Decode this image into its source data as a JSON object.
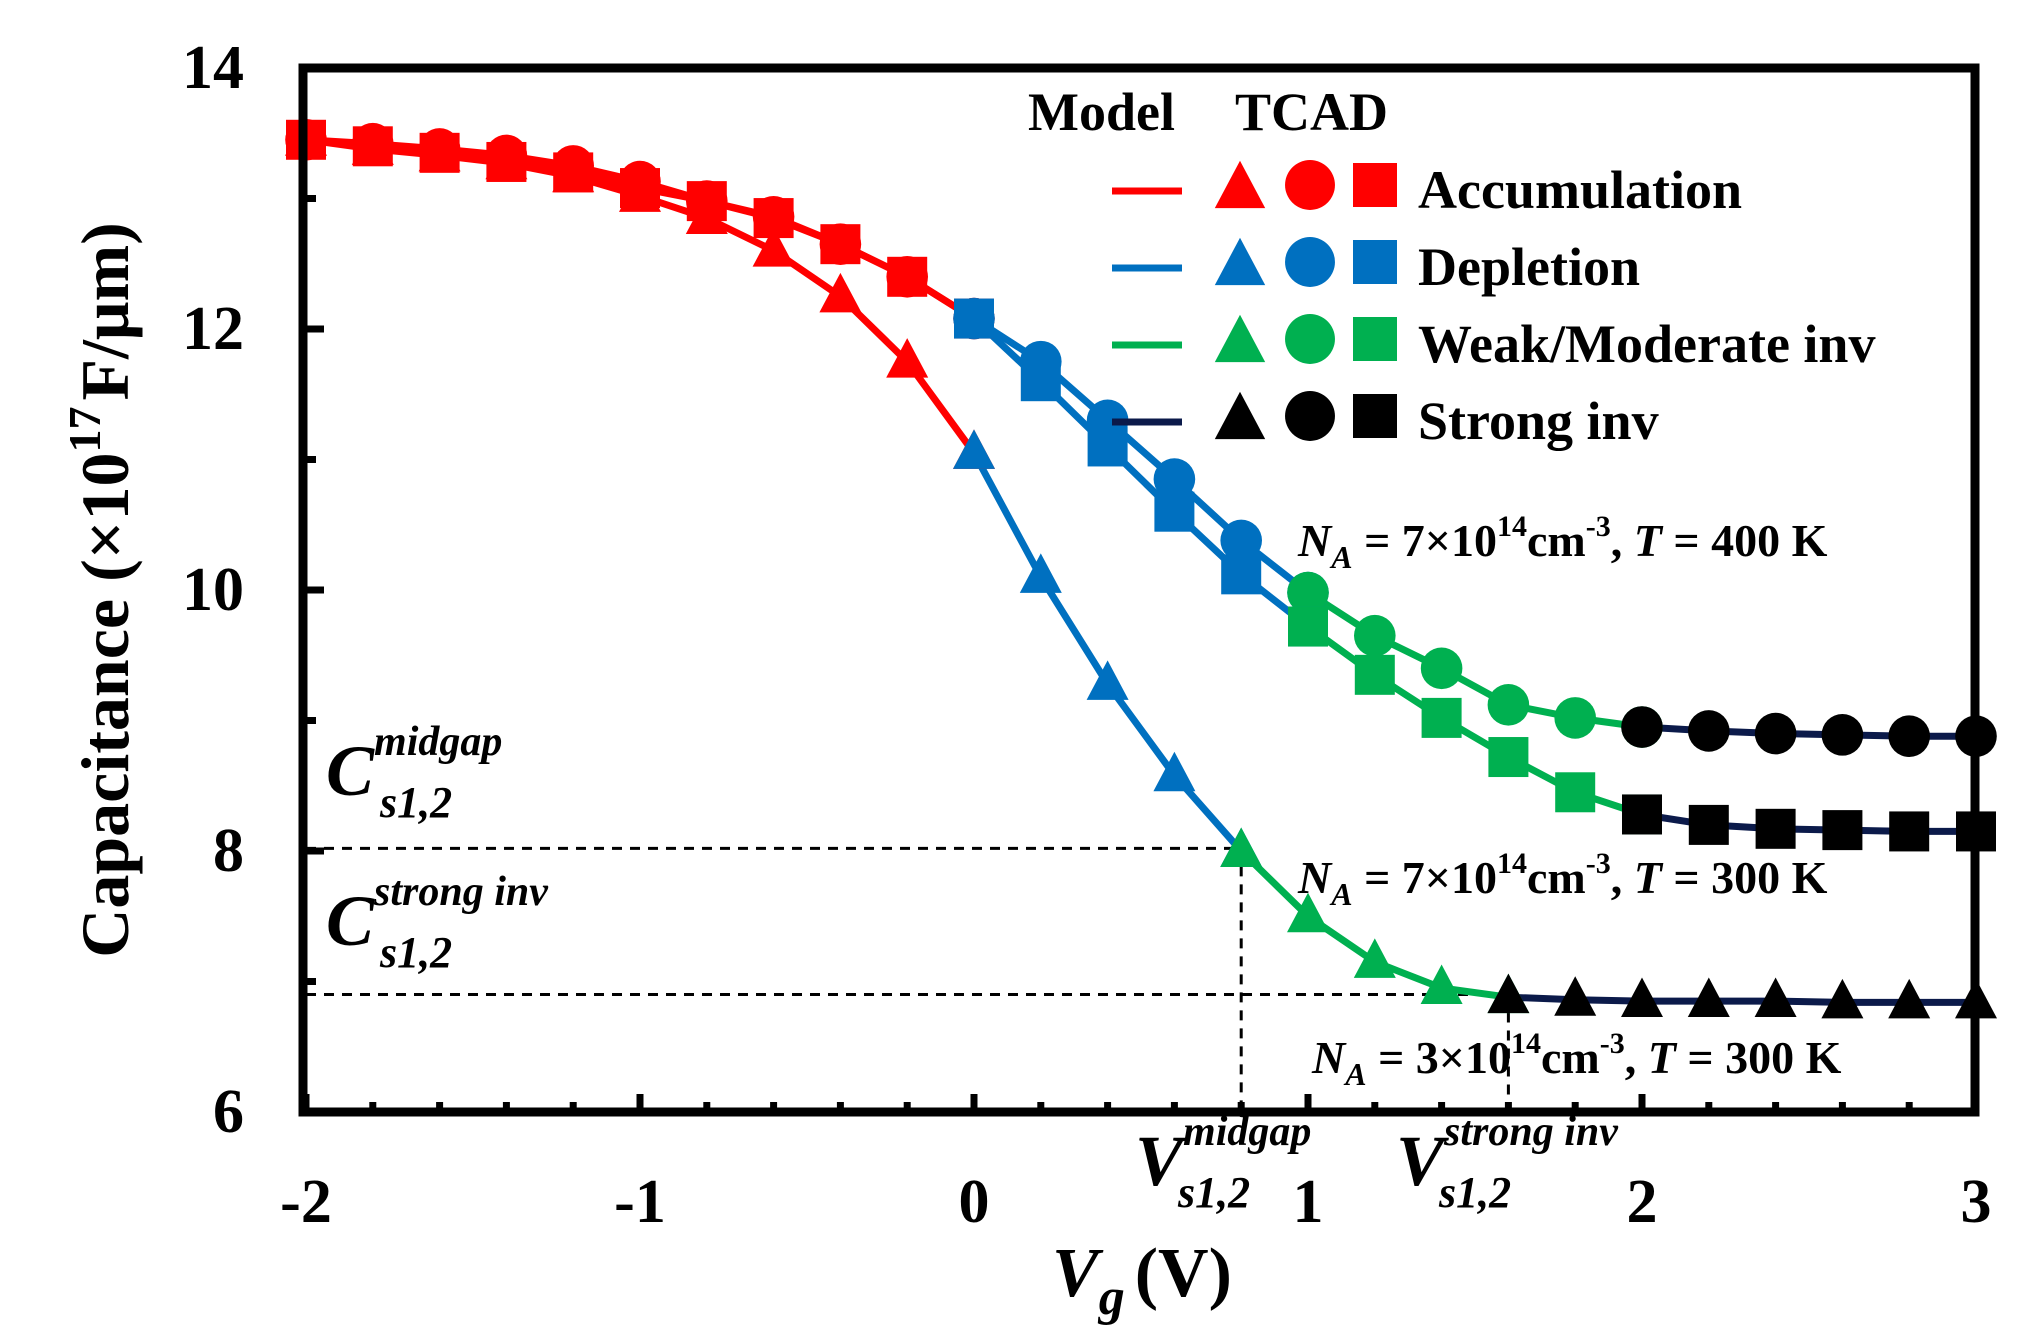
{
  "chart_data": {
    "type": "line",
    "xlabel": "V",
    "xlabel_sub": "g",
    "xlabel_unit": "(V)",
    "ylabel": "Capacitance (×10",
    "ylabel_exp": "17",
    "ylabel_unit": "F/μm)",
    "xlim": [
      -2,
      3
    ],
    "ylim": [
      6,
      14
    ],
    "xticks": [
      -2,
      -1,
      0,
      1,
      2,
      3
    ],
    "yticks": [
      6,
      8,
      10,
      12,
      14
    ],
    "xtick_labels": [
      "-2",
      "-1",
      "0",
      "1",
      "2",
      "3"
    ],
    "ytick_labels": [
      "6",
      "8",
      "10",
      "12",
      "14"
    ],
    "legend": {
      "header_model": "Model",
      "header_tcad": "TCAD",
      "position": "top-right",
      "entries": [
        {
          "label": "Accumulation",
          "color": "#ff0000"
        },
        {
          "label": "Depletion",
          "color": "#0070c0"
        },
        {
          "label": "Weak/Moderate inv",
          "color": "#00b050"
        },
        {
          "label": "Strong inv",
          "color": "#000000",
          "line_color": "#0b1a4a"
        }
      ]
    },
    "region_colors": {
      "accumulation": "#ff0000",
      "depletion": "#0070c0",
      "weak_moderate_inv": "#00b050",
      "strong_inv": "#0b1a4a",
      "strong_inv_marker": "#000000"
    },
    "series": [
      {
        "name": "NA = 7×10^14 cm^-3, T = 400 K",
        "marker": "circle",
        "annotation": {
          "pre": "N",
          "sub": "A",
          "mid": " = 7×10",
          "sup": "14",
          "unit": "cm",
          "unit_sup": "-3",
          "tail": ",  ",
          "tvar": "T",
          "tval": " = 400 K"
        },
        "segments": [
          {
            "region": "accumulation",
            "x": [
              -2.0,
              -1.8,
              -1.6,
              -1.4,
              -1.2,
              -1.0,
              -0.8,
              -0.6,
              -0.4,
              -0.2,
              0.0
            ],
            "y": [
              13.45,
              13.42,
              13.38,
              13.33,
              13.25,
              13.13,
              12.98,
              12.86,
              12.65,
              12.4,
              12.08
            ]
          },
          {
            "region": "depletion",
            "x": [
              0.0,
              0.2,
              0.4,
              0.6,
              0.8,
              1.0
            ],
            "y": [
              12.08,
              11.75,
              11.3,
              10.85,
              10.38,
              9.98
            ]
          },
          {
            "region": "weak_moderate_inv",
            "x": [
              1.0,
              1.2,
              1.4,
              1.6,
              1.8,
              2.0
            ],
            "y": [
              9.98,
              9.65,
              9.4,
              9.12,
              9.02,
              8.95
            ]
          },
          {
            "region": "strong_inv",
            "x": [
              2.0,
              2.2,
              2.4,
              2.6,
              2.8,
              3.0
            ],
            "y": [
              8.95,
              8.92,
              8.9,
              8.89,
              8.88,
              8.88
            ]
          }
        ]
      },
      {
        "name": "NA = 7×10^14 cm^-3, T = 300 K",
        "marker": "square",
        "annotation": {
          "pre": "N",
          "sub": "A",
          "mid": " = 7×10",
          "sup": "14",
          "unit": "cm",
          "unit_sup": "-3",
          "tail": ",  ",
          "tvar": "T",
          "tval": " = 300 K"
        },
        "segments": [
          {
            "region": "accumulation",
            "x": [
              -2.0,
              -1.8,
              -1.6,
              -1.4,
              -1.2,
              -1.0,
              -0.8,
              -0.6,
              -0.4,
              -0.2,
              0.0
            ],
            "y": [
              13.45,
              13.4,
              13.35,
              13.28,
              13.2,
              13.08,
              12.98,
              12.85,
              12.65,
              12.4,
              12.08
            ]
          },
          {
            "region": "depletion",
            "x": [
              0.0,
              0.2,
              0.4,
              0.6,
              0.8,
              1.0
            ],
            "y": [
              12.08,
              11.6,
              11.1,
              10.6,
              10.12,
              9.72
            ]
          },
          {
            "region": "weak_moderate_inv",
            "x": [
              1.0,
              1.2,
              1.4,
              1.6,
              1.8,
              2.0
            ],
            "y": [
              9.72,
              9.35,
              9.02,
              8.72,
              8.45,
              8.28
            ]
          },
          {
            "region": "strong_inv",
            "x": [
              2.0,
              2.2,
              2.4,
              2.6,
              2.8,
              3.0
            ],
            "y": [
              8.28,
              8.2,
              8.17,
              8.16,
              8.15,
              8.15
            ]
          }
        ]
      },
      {
        "name": "NA = 3×10^14 cm^-3, T = 300 K",
        "marker": "triangle",
        "annotation": {
          "pre": "N",
          "sub": "A",
          "mid": " = 3×10",
          "sup": "14",
          "unit": "cm",
          "unit_sup": "-3",
          "tail": ",  ",
          "tvar": "T",
          "tval": " = 300 K"
        },
        "segments": [
          {
            "region": "accumulation",
            "x": [
              -2.0,
              -1.8,
              -1.6,
              -1.4,
              -1.2,
              -1.0,
              -0.8,
              -0.6,
              -0.4,
              -0.2,
              0.0
            ],
            "y": [
              13.45,
              13.38,
              13.33,
              13.27,
              13.17,
              13.02,
              12.85,
              12.6,
              12.25,
              11.75,
              11.05
            ]
          },
          {
            "region": "depletion",
            "x": [
              0.0,
              0.2,
              0.4,
              0.6,
              0.8
            ],
            "y": [
              11.05,
              10.1,
              9.28,
              8.58,
              8.0
            ]
          },
          {
            "region": "weak_moderate_inv",
            "x": [
              0.8,
              1.0,
              1.2,
              1.4,
              1.6
            ],
            "y": [
              8.0,
              7.5,
              7.15,
              6.95,
              6.88
            ]
          },
          {
            "region": "strong_inv",
            "x": [
              1.6,
              1.8,
              2.0,
              2.2,
              2.4,
              2.6,
              2.8,
              3.0
            ],
            "y": [
              6.88,
              6.86,
              6.85,
              6.85,
              6.85,
              6.84,
              6.84,
              6.84
            ]
          }
        ]
      }
    ],
    "reference_lines": {
      "c_midgap": {
        "y": 8.02,
        "label_main": "C",
        "label_sup": "midgap",
        "label_sub": "s1,2"
      },
      "c_strong_inv": {
        "y": 6.9,
        "label_main": "C",
        "label_sup": "strong  inv",
        "label_sub": "s1,2"
      },
      "v_midgap": {
        "x": 0.8,
        "label_main": "V",
        "label_sup": "midgap",
        "label_sub": "s1,2"
      },
      "v_strong_inv": {
        "x": 1.6,
        "label_main": "V",
        "label_sup": "strong  inv",
        "label_sub": "s1,2"
      }
    }
  }
}
